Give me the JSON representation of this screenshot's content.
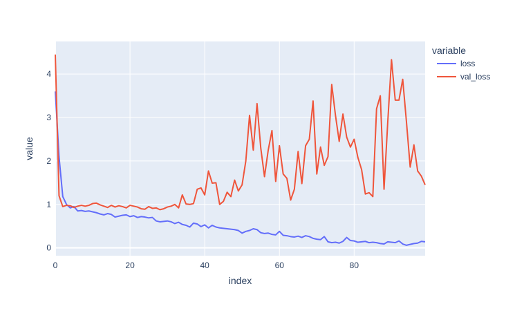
{
  "chart_data": {
    "type": "line",
    "xlabel": "index",
    "ylabel": "value",
    "xlim": [
      0,
      99
    ],
    "ylim": [
      -0.18,
      4.75
    ],
    "x_ticks": [
      0,
      20,
      40,
      60,
      80
    ],
    "y_ticks": [
      0,
      1,
      2,
      3,
      4
    ],
    "grid": true,
    "legend": {
      "title": "variable",
      "placement": "top-right, outside plot"
    },
    "plot_background": "#e5ecf6",
    "series": [
      {
        "name": "loss",
        "color": "#636efa",
        "values": [
          3.6,
          2.1,
          1.18,
          1.0,
          0.92,
          0.95,
          0.85,
          0.86,
          0.84,
          0.85,
          0.83,
          0.81,
          0.78,
          0.76,
          0.79,
          0.77,
          0.71,
          0.73,
          0.75,
          0.76,
          0.72,
          0.74,
          0.7,
          0.72,
          0.71,
          0.69,
          0.7,
          0.62,
          0.6,
          0.61,
          0.62,
          0.6,
          0.56,
          0.59,
          0.54,
          0.52,
          0.48,
          0.57,
          0.55,
          0.49,
          0.53,
          0.46,
          0.52,
          0.48,
          0.46,
          0.45,
          0.44,
          0.43,
          0.42,
          0.4,
          0.34,
          0.38,
          0.4,
          0.44,
          0.42,
          0.35,
          0.33,
          0.34,
          0.31,
          0.3,
          0.38,
          0.29,
          0.28,
          0.26,
          0.25,
          0.27,
          0.24,
          0.28,
          0.26,
          0.22,
          0.2,
          0.19,
          0.26,
          0.14,
          0.12,
          0.13,
          0.11,
          0.15,
          0.24,
          0.17,
          0.16,
          0.13,
          0.14,
          0.15,
          0.12,
          0.13,
          0.12,
          0.1,
          0.09,
          0.14,
          0.13,
          0.12,
          0.16,
          0.09,
          0.06,
          0.08,
          0.1,
          0.11,
          0.15,
          0.14
        ]
      },
      {
        "name": "val_loss",
        "color": "#ef553b",
        "values": [
          4.45,
          1.2,
          0.95,
          0.98,
          0.97,
          0.93,
          0.96,
          0.98,
          0.96,
          0.98,
          1.02,
          1.03,
          0.99,
          0.96,
          0.93,
          0.98,
          0.94,
          0.97,
          0.95,
          0.92,
          0.98,
          0.96,
          0.94,
          0.9,
          0.89,
          0.95,
          0.91,
          0.92,
          0.88,
          0.9,
          0.94,
          0.96,
          1.0,
          0.92,
          1.22,
          1.01,
          1.0,
          1.02,
          1.35,
          1.38,
          1.22,
          1.77,
          1.49,
          1.5,
          1.0,
          1.07,
          1.28,
          1.18,
          1.56,
          1.31,
          1.45,
          2.0,
          3.05,
          2.25,
          3.32,
          2.3,
          1.64,
          2.25,
          2.7,
          1.53,
          2.35,
          1.7,
          1.6,
          1.1,
          1.35,
          2.22,
          1.48,
          2.35,
          2.5,
          3.38,
          1.7,
          2.32,
          1.9,
          2.1,
          3.76,
          3.05,
          2.45,
          3.08,
          2.55,
          2.32,
          2.5,
          2.08,
          1.8,
          1.24,
          1.27,
          1.18,
          3.2,
          3.5,
          1.35,
          2.9,
          4.33,
          3.4,
          3.4,
          3.88,
          2.9,
          1.86,
          2.37,
          1.77,
          1.65,
          1.45
        ]
      }
    ]
  }
}
